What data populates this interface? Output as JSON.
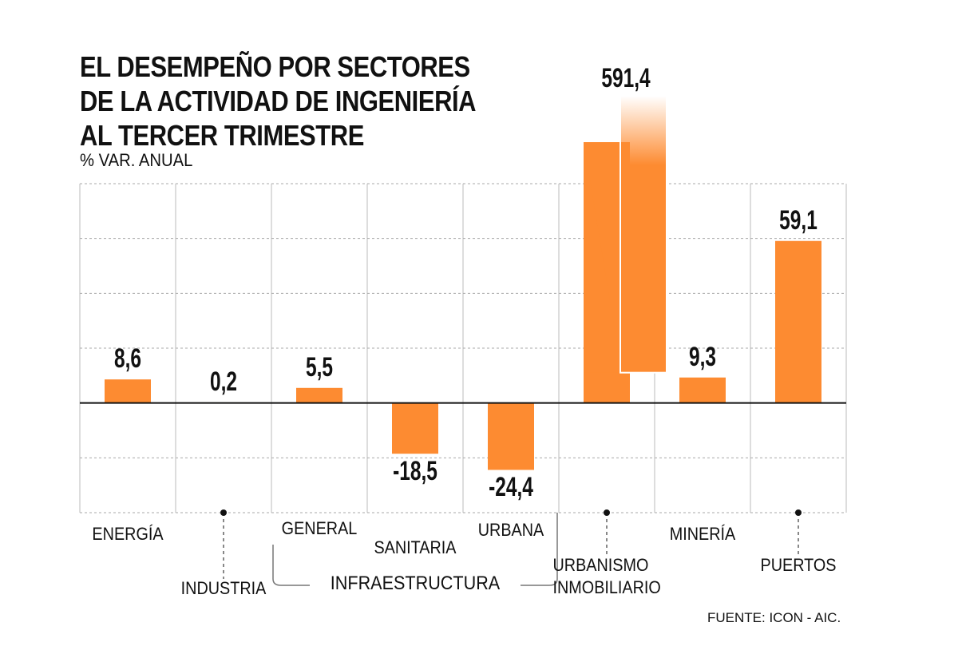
{
  "chart_data": {
    "type": "bar",
    "title": [
      "EL DESEMPEÑO POR SECTORES",
      "DE LA ACTIVIDAD DE INGENIERÍA",
      "AL TERCER TRIMESTRE"
    ],
    "subtitle": "% VAR. ANUAL",
    "categories": [
      "ENERGÍA",
      "INDUSTRIA",
      "GENERAL",
      "SANITARIA",
      "URBANA",
      "URBANISMO INMOBILIARIO",
      "MINERÍA",
      "PUERTOS"
    ],
    "group_label": "INFRAESTRUCTURA",
    "values": [
      8.6,
      0.2,
      5.5,
      -18.5,
      -24.4,
      591.4,
      9.3,
      59.1
    ],
    "value_labels": [
      "8,6",
      "0,2",
      "5,5",
      "-18,5",
      "-24,4",
      "591,4",
      "9,3",
      "59,1"
    ],
    "color": "#fd8b31",
    "ylim": [
      -40,
      80
    ],
    "yticks": [
      -40,
      -20,
      0,
      20,
      40,
      60,
      80
    ],
    "grid": true,
    "source": "FUENTE: ICON - AIC."
  }
}
